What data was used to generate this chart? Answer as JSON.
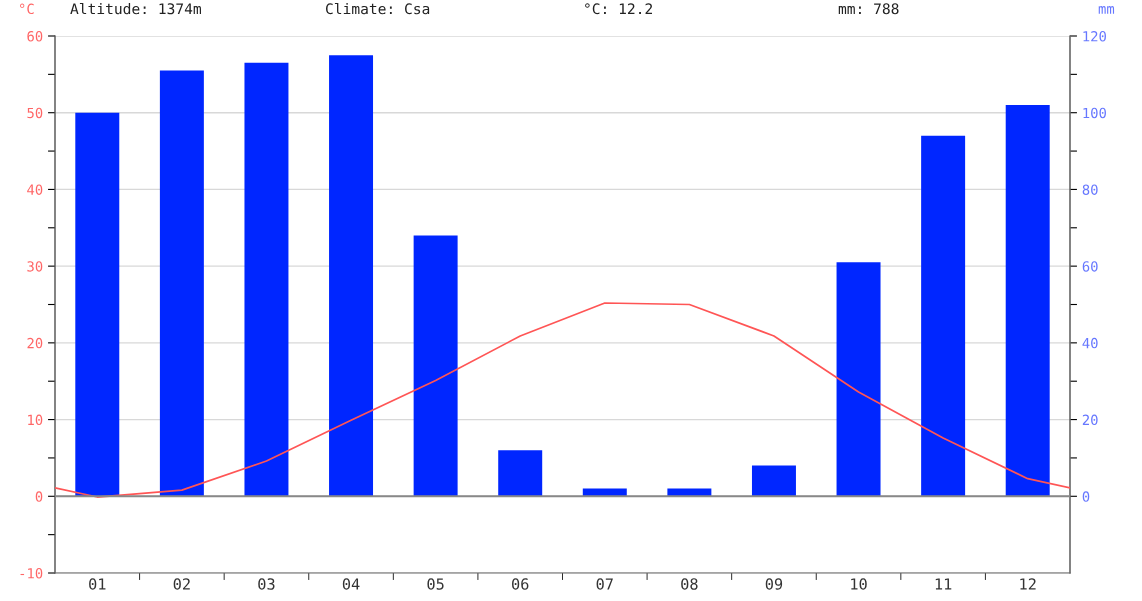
{
  "chart_data": {
    "type": "bar",
    "ylabel": "°C",
    "y2label": "mm",
    "annotations": [
      "Altitude: 1374m",
      "Climate: Csa",
      "°C: 12.2",
      "mm: 788"
    ],
    "x": [
      1,
      2,
      3,
      4,
      5,
      6,
      7,
      8,
      9,
      10,
      11,
      12
    ],
    "xlim": [
      0.5,
      12.5
    ],
    "xticks": [
      {
        "value": 1,
        "label": "01"
      },
      {
        "value": 2,
        "label": "02"
      },
      {
        "value": 3,
        "label": "03"
      },
      {
        "value": 4,
        "label": "04"
      },
      {
        "value": 5,
        "label": "05"
      },
      {
        "value": 6,
        "label": "06"
      },
      {
        "value": 7,
        "label": "07"
      },
      {
        "value": 8,
        "label": "08"
      },
      {
        "value": 9,
        "label": "09"
      },
      {
        "value": 10,
        "label": "10"
      },
      {
        "value": 11,
        "label": "11"
      },
      {
        "value": 12,
        "label": "12"
      }
    ],
    "series": [
      {
        "axis": "y2",
        "color": "#0026ff",
        "values": [
          100,
          111,
          113,
          115,
          68,
          12,
          2,
          2,
          8,
          61,
          94,
          102
        ]
      },
      {
        "type": "line",
        "axis": "y",
        "color": "#ff5555",
        "x": [
          0.5,
          1,
          2,
          3,
          4,
          5,
          6,
          7,
          8,
          9,
          10,
          11,
          12,
          12.5
        ],
        "values": [
          1.1,
          -0.1,
          0.8,
          4.6,
          9.9,
          15.1,
          20.9,
          25.2,
          25.0,
          20.9,
          13.6,
          7.6,
          2.3,
          1.1
        ]
      }
    ],
    "ylim": [
      -10,
      60
    ],
    "yticks": [
      -10,
      {
        "value": -5,
        "label": null
      },
      0,
      {
        "value": 5,
        "label": null
      },
      10,
      {
        "value": 15,
        "label": null
      },
      20,
      {
        "value": 25,
        "label": null
      },
      30,
      {
        "value": 35,
        "label": null
      },
      40,
      {
        "value": 45,
        "label": null
      },
      50,
      {
        "value": 55,
        "label": null
      },
      60
    ],
    "y2lim": [
      -20,
      120
    ],
    "y2ticks": [
      0,
      {
        "value": 10,
        "label": null
      },
      20,
      {
        "value": 30,
        "label": null
      },
      40,
      {
        "value": 50,
        "label": null
      },
      60,
      {
        "value": 70,
        "label": null
      },
      80,
      {
        "value": 90,
        "label": null
      },
      100,
      {
        "value": 110,
        "label": null
      },
      120
    ],
    "ref_lines": [
      {
        "axis": "y",
        "value": 0,
        "color": "#888888"
      }
    ],
    "grid": "y",
    "legend": false,
    "marker": "none",
    "line_style": "solid"
  }
}
